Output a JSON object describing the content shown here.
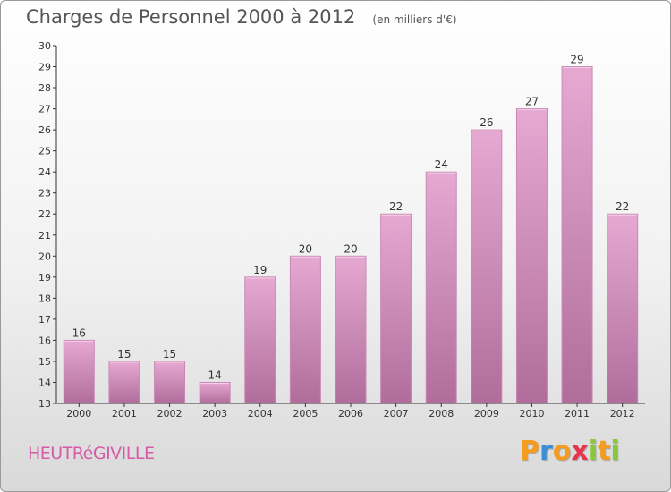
{
  "header": {
    "title": "Charges de Personnel 2000 à 2012",
    "subtitle": "(en milliers d'€)"
  },
  "footer": {
    "commune": "HEUTRéGIVILLE",
    "logo_text": "Proxiti",
    "logo_letters": [
      {
        "char": "P",
        "color": "#f39c1f"
      },
      {
        "char": "r",
        "color": "#3b8ed4"
      },
      {
        "char": "o",
        "color": "#f39c1f"
      },
      {
        "char": "x",
        "color": "#e8334a"
      },
      {
        "char": "i",
        "color": "#8cc63f"
      },
      {
        "char": "t",
        "color": "#f39c1f"
      },
      {
        "char": "i",
        "color": "#8cc63f"
      }
    ]
  },
  "chart_data": {
    "type": "bar",
    "title": "Charges de Personnel 2000 à 2012",
    "subtitle": "(en milliers d'€)",
    "categories": [
      "2000",
      "2001",
      "2002",
      "2003",
      "2004",
      "2005",
      "2006",
      "2007",
      "2008",
      "2009",
      "2010",
      "2011",
      "2012"
    ],
    "values": [
      16,
      15,
      15,
      14,
      19,
      20,
      20,
      22,
      24,
      26,
      27,
      29,
      22
    ],
    "ylim": [
      13,
      30
    ],
    "yticks": [
      13,
      14,
      15,
      16,
      17,
      18,
      19,
      20,
      21,
      22,
      23,
      24,
      25,
      26,
      27,
      28,
      29,
      30
    ],
    "grid": false,
    "bar_color": "#d98fc0",
    "bar_color_dark": "#b5679c"
  }
}
